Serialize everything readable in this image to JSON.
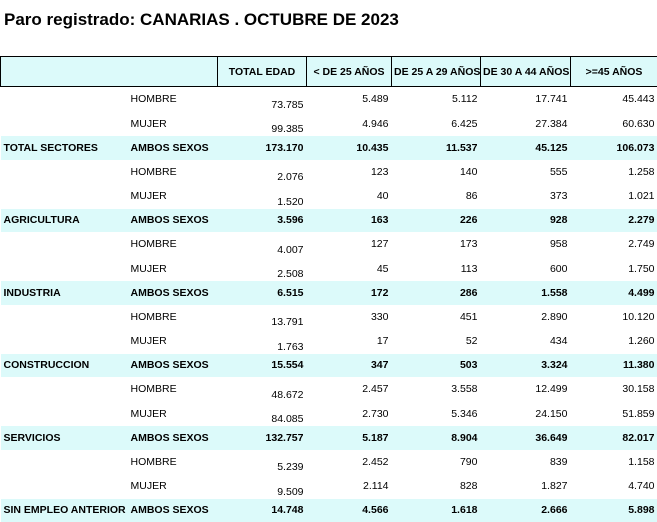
{
  "title": "Paro registrado: CANARIAS . OCTUBRE DE 2023",
  "columns": [
    "TOTAL EDAD",
    "< DE 25 AÑOS",
    "DE 25 A 29 AÑOS",
    "DE 30 A 44 AÑOS",
    ">=45 AÑOS"
  ],
  "rows": [
    {
      "sector": "",
      "sexo": "HOMBRE",
      "values": [
        "73.785",
        "5.489",
        "5.112",
        "17.741",
        "45.443"
      ]
    },
    {
      "sector": "",
      "sexo": "MUJER",
      "values": [
        "99.385",
        "4.946",
        "6.425",
        "27.384",
        "60.630"
      ]
    },
    {
      "sector": "TOTAL SECTORES",
      "sexo": "AMBOS SEXOS",
      "values": [
        "173.170",
        "10.435",
        "11.537",
        "45.125",
        "106.073"
      ]
    },
    {
      "sector": "",
      "sexo": "HOMBRE",
      "values": [
        "2.076",
        "123",
        "140",
        "555",
        "1.258"
      ]
    },
    {
      "sector": "",
      "sexo": "MUJER",
      "values": [
        "1.520",
        "40",
        "86",
        "373",
        "1.021"
      ]
    },
    {
      "sector": "AGRICULTURA",
      "sexo": "AMBOS SEXOS",
      "values": [
        "3.596",
        "163",
        "226",
        "928",
        "2.279"
      ]
    },
    {
      "sector": "",
      "sexo": "HOMBRE",
      "values": [
        "4.007",
        "127",
        "173",
        "958",
        "2.749"
      ]
    },
    {
      "sector": "",
      "sexo": "MUJER",
      "values": [
        "2.508",
        "45",
        "113",
        "600",
        "1.750"
      ]
    },
    {
      "sector": "INDUSTRIA",
      "sexo": "AMBOS SEXOS",
      "values": [
        "6.515",
        "172",
        "286",
        "1.558",
        "4.499"
      ]
    },
    {
      "sector": "",
      "sexo": "HOMBRE",
      "values": [
        "13.791",
        "330",
        "451",
        "2.890",
        "10.120"
      ]
    },
    {
      "sector": "",
      "sexo": "MUJER",
      "values": [
        "1.763",
        "17",
        "52",
        "434",
        "1.260"
      ]
    },
    {
      "sector": "CONSTRUCCION",
      "sexo": "AMBOS SEXOS",
      "values": [
        "15.554",
        "347",
        "503",
        "3.324",
        "11.380"
      ]
    },
    {
      "sector": "",
      "sexo": "HOMBRE",
      "values": [
        "48.672",
        "2.457",
        "3.558",
        "12.499",
        "30.158"
      ]
    },
    {
      "sector": "",
      "sexo": "MUJER",
      "values": [
        "84.085",
        "2.730",
        "5.346",
        "24.150",
        "51.859"
      ]
    },
    {
      "sector": "SERVICIOS",
      "sexo": "AMBOS SEXOS",
      "values": [
        "132.757",
        "5.187",
        "8.904",
        "36.649",
        "82.017"
      ]
    },
    {
      "sector": "",
      "sexo": "HOMBRE",
      "values": [
        "5.239",
        "2.452",
        "790",
        "839",
        "1.158"
      ]
    },
    {
      "sector": "",
      "sexo": "MUJER",
      "values": [
        "9.509",
        "2.114",
        "828",
        "1.827",
        "4.740"
      ]
    },
    {
      "sector": "SIN EMPLEO ANTERIOR",
      "sexo": "AMBOS SEXOS",
      "values": [
        "14.748",
        "4.566",
        "1.618",
        "2.666",
        "5.898"
      ]
    }
  ],
  "colors": {
    "header_bg": "#dcfafa",
    "total_row_bg": "#dcfafa"
  }
}
